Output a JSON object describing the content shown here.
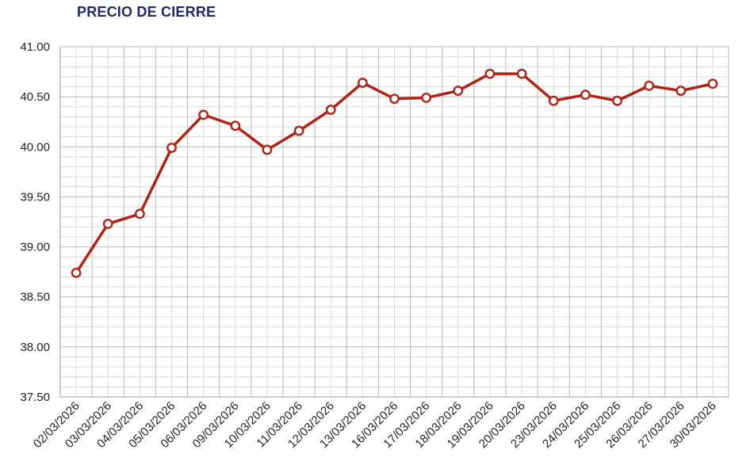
{
  "colors": {
    "title": "#1f2a6b",
    "line": "#b02418",
    "marker_fill": "#ffffff",
    "grid_major": "#b8b8b8",
    "grid_minor": "#d9d9d9",
    "axis": "#9a9a9a"
  },
  "chart_data": {
    "type": "line",
    "title": "PRECIO DE CIERRE",
    "xlabel": "",
    "ylabel": "",
    "ylim": [
      37.5,
      41.0
    ],
    "yticks": [
      "41.00",
      "40.50",
      "40.00",
      "39.50",
      "39.00",
      "38.50",
      "38.00",
      "37.50"
    ],
    "grid": true,
    "categories": [
      "02/03/2026",
      "03/03/2026",
      "04/03/2026",
      "05/03/2026",
      "06/03/2026",
      "09/03/2026",
      "10/03/2026",
      "11/03/2026",
      "12/03/2026",
      "13/03/2026",
      "16/03/2026",
      "17/03/2026",
      "18/03/2026",
      "19/03/2026",
      "20/03/2026",
      "23/03/2026",
      "24/03/2026",
      "25/03/2026",
      "26/03/2026",
      "27/03/2026",
      "30/03/2026"
    ],
    "series": [
      {
        "values": [
          38.74,
          39.23,
          39.33,
          39.99,
          40.32,
          40.21,
          39.97,
          40.16,
          40.37,
          40.64,
          40.48,
          40.49,
          40.56,
          40.73,
          40.73,
          40.46,
          40.52,
          40.46,
          40.61,
          40.56,
          40.63
        ]
      }
    ]
  }
}
